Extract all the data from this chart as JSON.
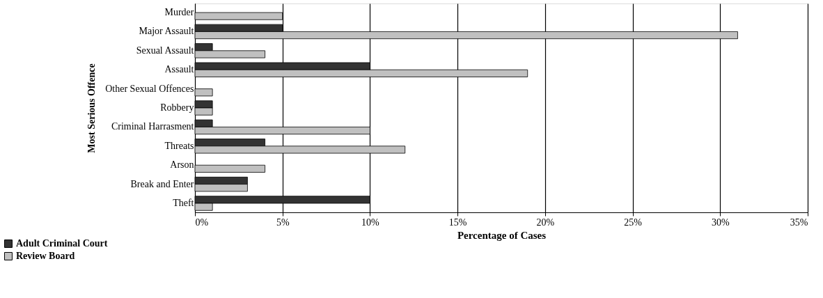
{
  "chart_data": {
    "type": "bar",
    "orientation": "horizontal",
    "xlabel": "Percentage of Cases",
    "ylabel": "Most Serious Offence",
    "categories": [
      "Murder",
      "Major Assault",
      "Sexual Assault",
      "Assault",
      "Other Sexual Offences",
      "Robbery",
      "Criminal Harrasment",
      "Threats",
      "Arson",
      "Break and Enter",
      "Theft"
    ],
    "series": [
      {
        "name": "Adult Criminal Court",
        "color": "#333333",
        "values": [
          0,
          5,
          1,
          10,
          0,
          1,
          1,
          4,
          0,
          3,
          10
        ]
      },
      {
        "name": "Review Board",
        "color": "#c0c0c0",
        "values": [
          5,
          31,
          4,
          19,
          1,
          1,
          10,
          12,
          4,
          3,
          1
        ]
      }
    ],
    "xlim": [
      0,
      35
    ],
    "xticks": [
      {
        "value": 0,
        "label": "0%"
      },
      {
        "value": 5,
        "label": "5%"
      },
      {
        "value": 10,
        "label": "10%"
      },
      {
        "value": 15,
        "label": "15%"
      },
      {
        "value": 20,
        "label": "20%"
      },
      {
        "value": 25,
        "label": "25%"
      },
      {
        "value": 30,
        "label": "30%"
      },
      {
        "value": 35,
        "label": "35%"
      }
    ],
    "grid": "x",
    "legend": "bottom left"
  }
}
